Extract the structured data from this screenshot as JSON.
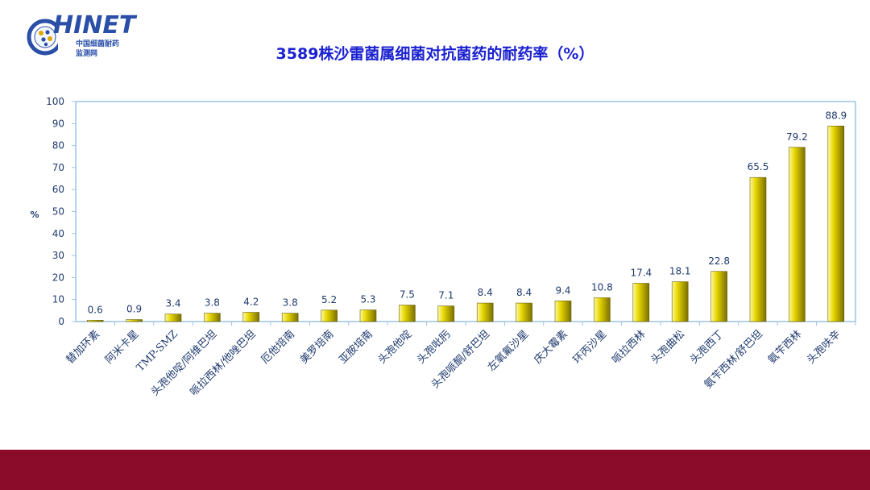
{
  "logo": {
    "main": "HINET",
    "line1": "中国细菌耐药",
    "line2": "监测网"
  },
  "colors": {
    "bar": "#e6d600",
    "title": "#1a21d0",
    "axis_text": "#1f3a6e",
    "footer": "#8b0b2b",
    "axis": "#9cc3e6"
  },
  "chart_data": {
    "type": "bar",
    "title": "3589株沙雷菌属细菌对抗菌药的耐药率（%）",
    "ylabel": "%",
    "xlabel": "",
    "ylim": [
      0,
      100
    ],
    "yticks": [
      0,
      10,
      20,
      30,
      40,
      50,
      60,
      70,
      80,
      90,
      100
    ],
    "grid": false,
    "categories": [
      "替加环素",
      "阿米卡星",
      "TMP-SMZ",
      "头孢他啶/阿维巴坦",
      "哌拉西林/他唑巴坦",
      "厄他培南",
      "美罗培南",
      "亚胺培南",
      "头孢他啶",
      "头孢吡肟",
      "头孢哌酮/舒巴坦",
      "左氧氟沙星",
      "庆大霉素",
      "环丙沙星",
      "哌拉西林",
      "头孢曲松",
      "头孢西丁",
      "氨苄西林/舒巴坦",
      "氨苄西林",
      "头孢呋辛"
    ],
    "values": [
      0.6,
      0.9,
      3.4,
      3.8,
      4.2,
      3.8,
      5.2,
      5.3,
      7.5,
      7.1,
      8.4,
      8.4,
      9.4,
      10.8,
      17.4,
      18.1,
      22.8,
      65.5,
      79.2,
      88.9
    ],
    "data_labels": [
      "0.6",
      "0.9",
      "3.4",
      "3.8",
      "4.2",
      "3.8",
      "5.2",
      "5.3",
      "7.5",
      "7.1",
      "8.4",
      "8.4",
      "9.4",
      "10.8",
      "17.4",
      "18.1",
      "22.8",
      "65.5",
      "79.2",
      "88.9"
    ]
  }
}
